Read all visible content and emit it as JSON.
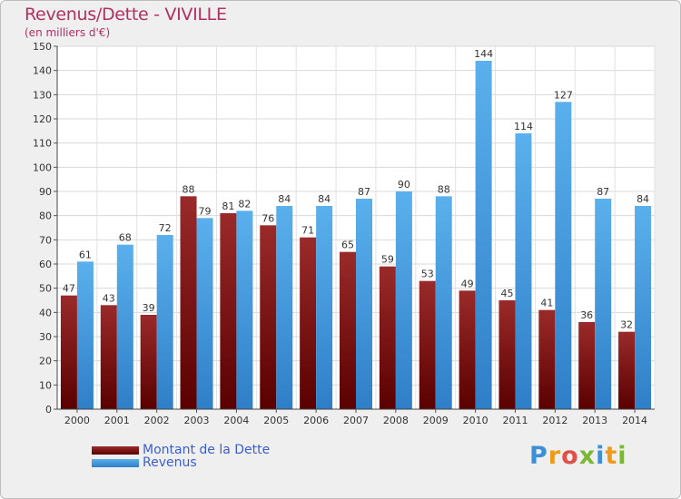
{
  "header": {
    "title": "Revenus/Dette - VIVILLE",
    "subtitle": "(en milliers d'€)"
  },
  "chart_data": {
    "type": "bar",
    "categories": [
      "2000",
      "2001",
      "2002",
      "2003",
      "2004",
      "2005",
      "2006",
      "2007",
      "2008",
      "2009",
      "2010",
      "2011",
      "2012",
      "2013",
      "2014"
    ],
    "series": [
      {
        "name": "Montant de la Dette",
        "color": "#8b1a1a",
        "values": [
          47,
          43,
          39,
          88,
          81,
          76,
          71,
          65,
          59,
          53,
          49,
          45,
          41,
          36,
          32
        ]
      },
      {
        "name": "Revenus",
        "color": "#4da6e8",
        "values": [
          61,
          68,
          72,
          79,
          82,
          84,
          84,
          87,
          90,
          88,
          144,
          114,
          127,
          87,
          84
        ]
      }
    ],
    "ylim": [
      0,
      150
    ],
    "yticks": [
      0,
      10,
      20,
      30,
      40,
      50,
      60,
      70,
      80,
      90,
      100,
      110,
      120,
      130,
      140,
      150
    ],
    "grid": true,
    "legend": "bottom-left"
  },
  "legend": {
    "items": [
      {
        "label": "Montant de la Dette",
        "color": "#7a1010"
      },
      {
        "label": "Revenus",
        "color": "#4da6e8"
      }
    ]
  },
  "logo": {
    "letters": [
      "P",
      "r",
      "o",
      "x",
      "i",
      "t",
      "i"
    ],
    "colors": [
      "#3d8fd6",
      "#f09a1a",
      "#e0504a",
      "#7ab833",
      "#3d8fd6",
      "#f09a1a",
      "#7ab833"
    ]
  }
}
